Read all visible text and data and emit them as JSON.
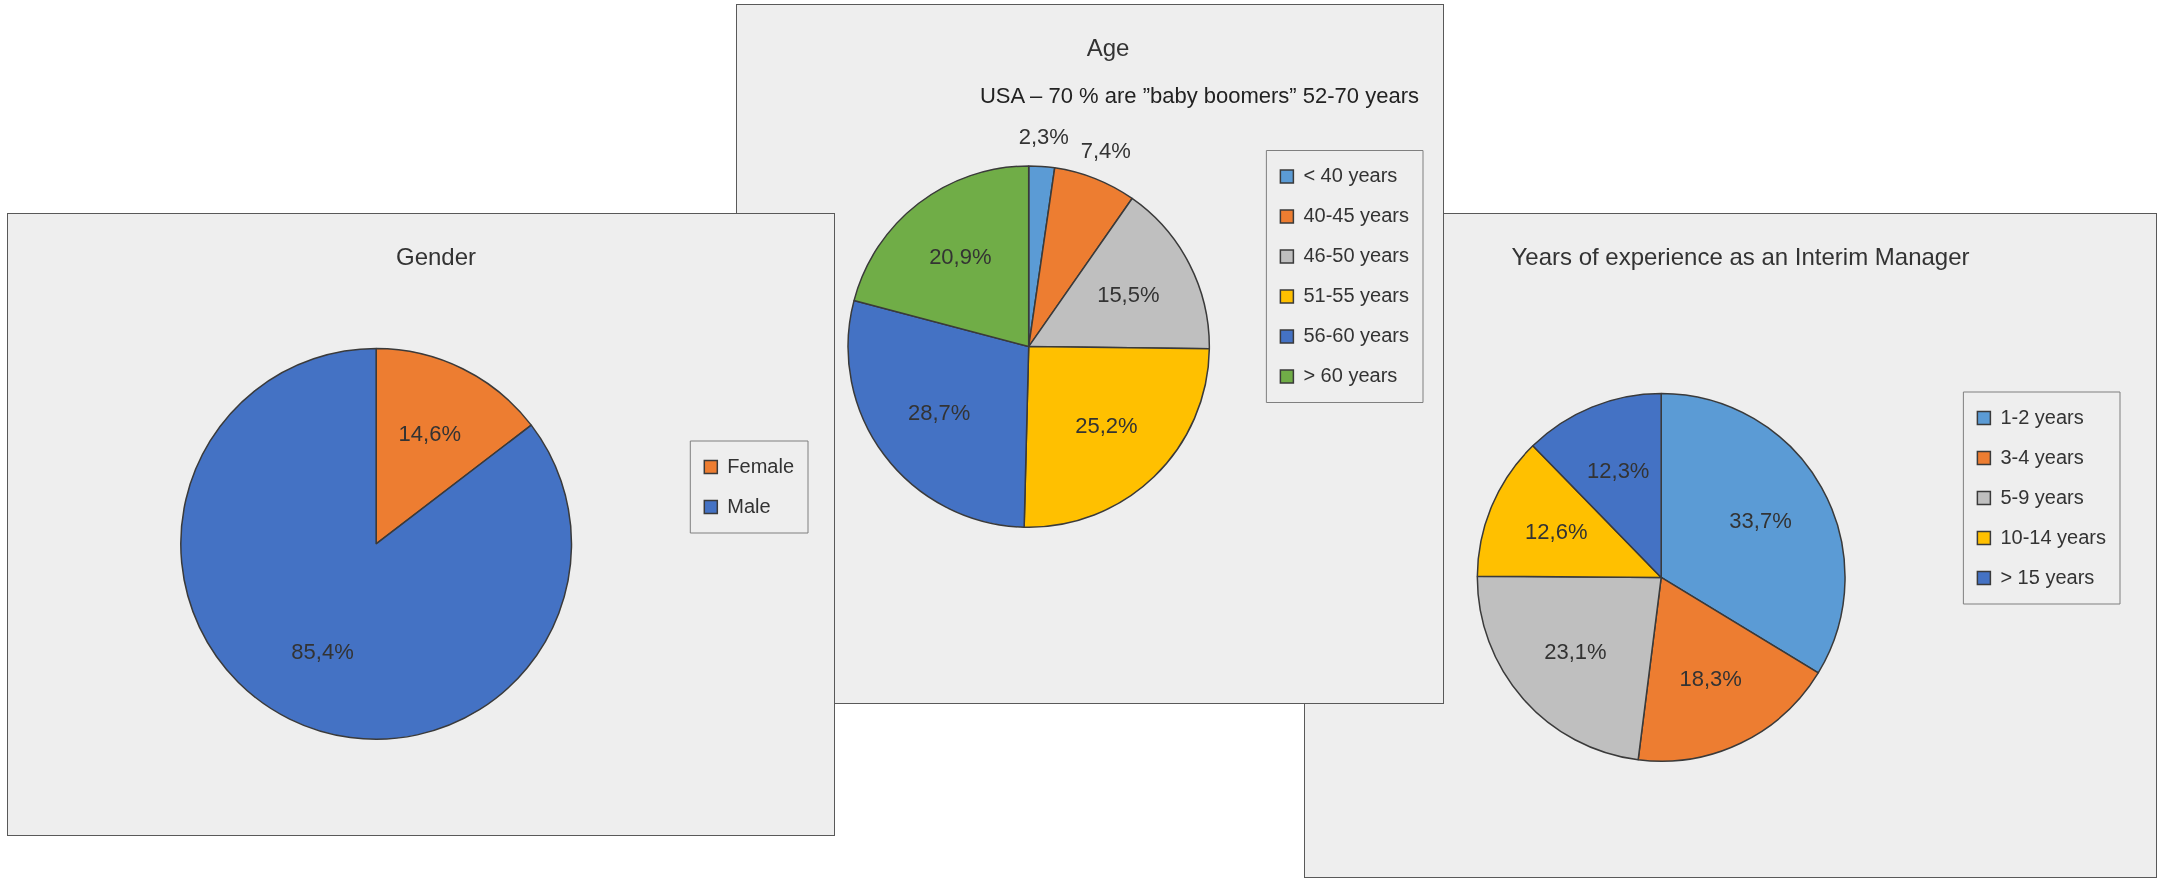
{
  "chart_data": [
    {
      "type": "pie",
      "title": "Gender",
      "categories": [
        "Female",
        "Male"
      ],
      "values": [
        14.6,
        85.4
      ],
      "colors": [
        "#ed7d31",
        "#4472c4"
      ],
      "value_labels": [
        "14,6%",
        "85,4%"
      ],
      "legend": "right"
    },
    {
      "type": "pie",
      "title": "Age",
      "subtitle": "USA – 70 % are ”baby boomers” 52-70 years",
      "categories": [
        "< 40 years",
        "40-45 years",
        "46-50 years",
        "51-55 years",
        "56-60 years",
        "> 60 years"
      ],
      "values": [
        2.3,
        7.4,
        15.5,
        25.2,
        28.7,
        20.9
      ],
      "colors": [
        "#5b9bd5",
        "#ed7d31",
        "#bfbfbf",
        "#ffc000",
        "#4472c4",
        "#70ad47"
      ],
      "value_labels": [
        "2,3%",
        "7,4%",
        "15,5%",
        "25,2%",
        "28,7%",
        "20,9%"
      ],
      "legend": "right"
    },
    {
      "type": "pie",
      "title": "Years of experience as an Interim Manager",
      "categories": [
        "1-2 years",
        "3-4 years",
        "5-9 years",
        "10-14 years",
        "> 15 years"
      ],
      "values": [
        33.7,
        18.3,
        23.1,
        12.6,
        12.3
      ],
      "colors": [
        "#5b9bd5",
        "#ed7d31",
        "#bfbfbf",
        "#ffc000",
        "#4472c4"
      ],
      "value_labels": [
        "33,7%",
        "18,3%",
        "23,1%",
        "12,6%",
        "12,3%"
      ],
      "legend": "right"
    }
  ]
}
